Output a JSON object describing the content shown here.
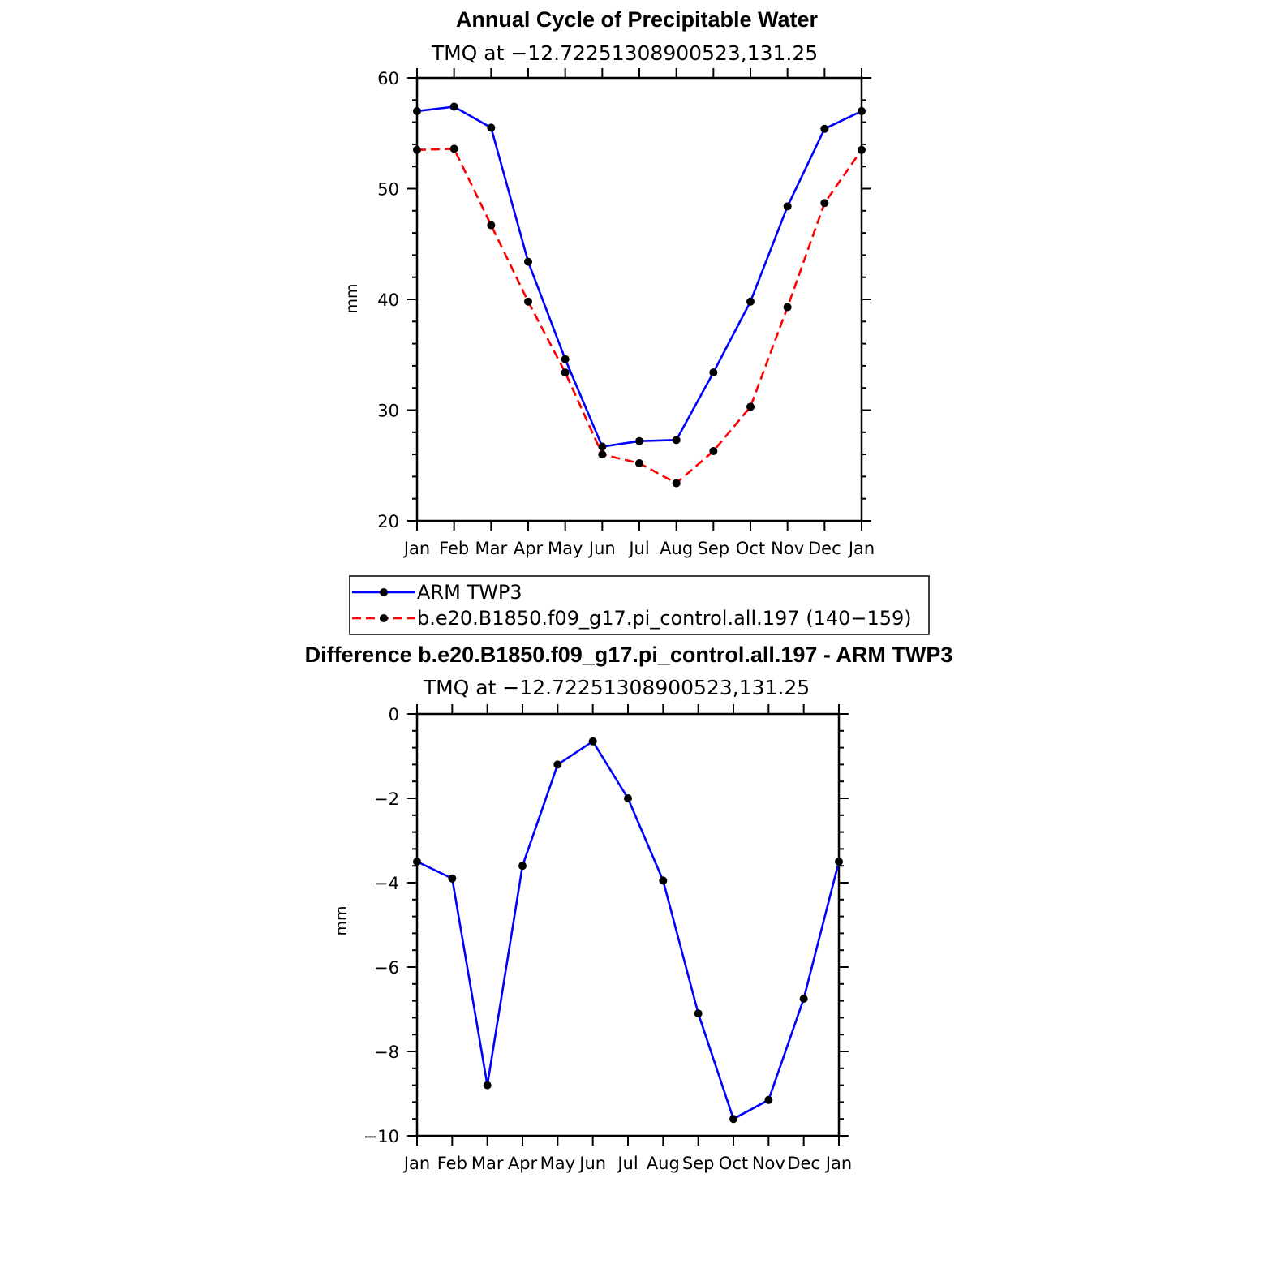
{
  "chart_data": [
    {
      "type": "line",
      "title": "Annual Cycle of Precipitable Water",
      "subtitle": "TMQ at −12.72251308900523,131.25",
      "ylabel": "mm",
      "xlabel": "",
      "ylim": [
        20,
        60
      ],
      "yticks": [
        20,
        30,
        40,
        50,
        60
      ],
      "categories": [
        "Jan",
        "Feb",
        "Mar",
        "Apr",
        "May",
        "Jun",
        "Jul",
        "Aug",
        "Sep",
        "Oct",
        "Nov",
        "Dec",
        "Jan"
      ],
      "grid": false,
      "legend_position": "bottom",
      "series": [
        {
          "name": "ARM TWP3",
          "color": "#0000ff",
          "dash": "solid",
          "values": [
            57.0,
            57.4,
            55.5,
            43.4,
            34.6,
            26.7,
            27.2,
            27.3,
            33.4,
            39.8,
            48.4,
            55.4,
            57.0
          ]
        },
        {
          "name": "b.e20.B1850.f09_g17.pi_control.all.197 (140−159)",
          "color": "#ff0000",
          "dash": "dashed",
          "values": [
            53.5,
            53.6,
            46.7,
            39.8,
            33.4,
            26.0,
            25.2,
            23.4,
            26.3,
            30.3,
            39.3,
            48.7,
            53.5
          ]
        }
      ]
    },
    {
      "type": "line",
      "title": "Difference b.e20.B1850.f09_g17.pi_control.all.197 - ARM TWP3",
      "subtitle": "TMQ at −12.72251308900523,131.25",
      "ylabel": "mm",
      "xlabel": "",
      "ylim": [
        -10,
        0
      ],
      "yticks": [
        0,
        -2,
        -4,
        -6,
        -8,
        -10
      ],
      "ytick_labels": [
        "0",
        "−2",
        "−4",
        "−6",
        "−8",
        "−10"
      ],
      "categories": [
        "Jan",
        "Feb",
        "Mar",
        "Apr",
        "May",
        "Jun",
        "Jul",
        "Aug",
        "Sep",
        "Oct",
        "Nov",
        "Dec",
        "Jan"
      ],
      "grid": false,
      "series": [
        {
          "color": "#0000ff",
          "dash": "solid",
          "values": [
            -3.5,
            -3.9,
            -8.8,
            -3.6,
            -1.2,
            -0.65,
            -2.0,
            -3.95,
            -7.1,
            -9.6,
            -9.15,
            -6.75,
            -3.5
          ]
        }
      ]
    }
  ]
}
